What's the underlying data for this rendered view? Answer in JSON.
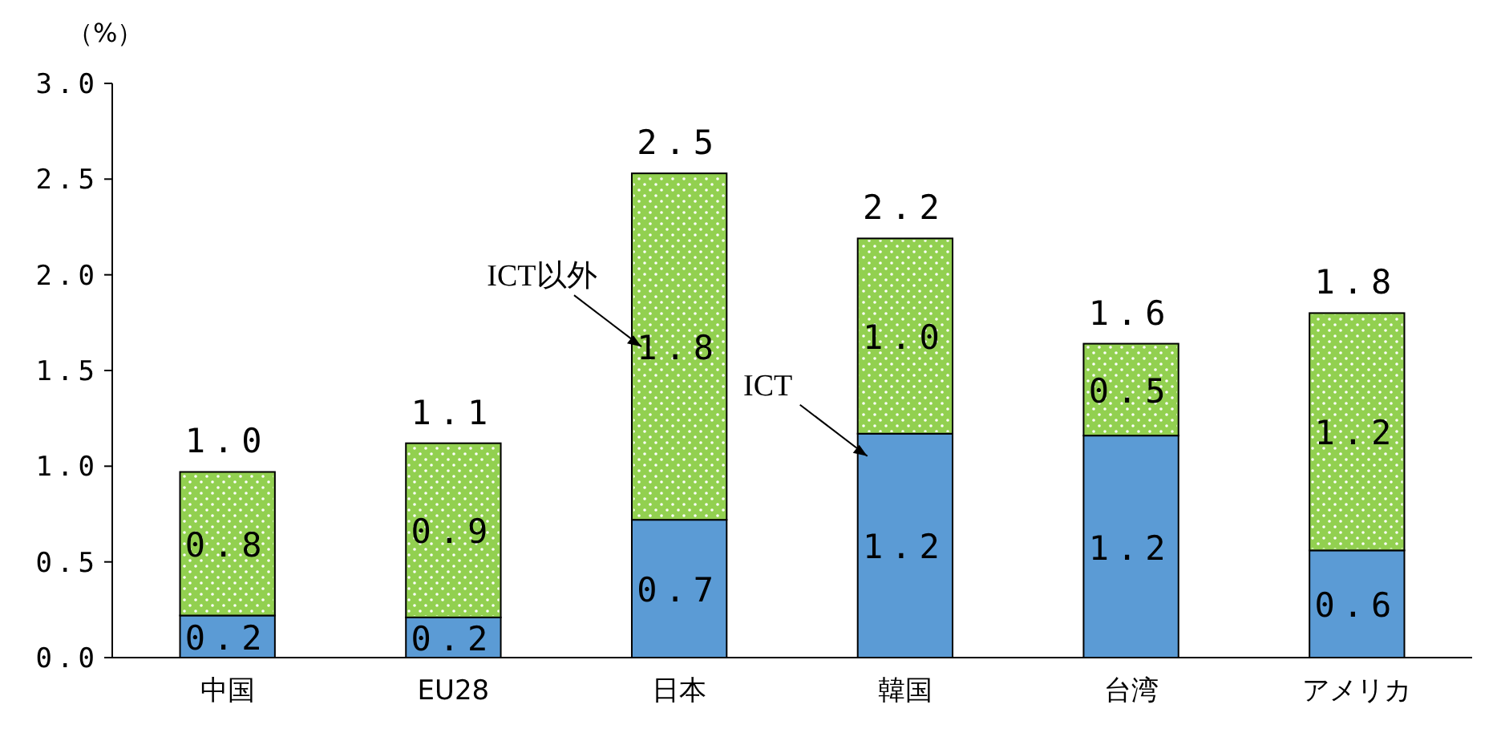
{
  "chart_data": {
    "type": "bar",
    "stacked": true,
    "ylabel": "（%）",
    "categories": [
      "中国",
      "EU28",
      "日本",
      "韓国",
      "台湾",
      "アメリカ"
    ],
    "series": [
      {
        "name": "ICT",
        "color": "#5b9bd5",
        "values": [
          0.22,
          0.21,
          0.72,
          1.17,
          1.16,
          0.56
        ],
        "value_labels": [
          "0.2",
          "0.2",
          "0.7",
          "1.2",
          "1.2",
          "0.6"
        ]
      },
      {
        "name": "ICT以外",
        "color": "#92d050",
        "values": [
          0.75,
          0.91,
          1.81,
          1.02,
          0.48,
          1.24
        ],
        "value_labels": [
          "0.8",
          "0.9",
          "1.8",
          "1.0",
          "0.5",
          "1.2"
        ]
      }
    ],
    "totals": [
      "1.0",
      "1.1",
      "2.5",
      "2.2",
      "1.6",
      "1.8"
    ],
    "ylim": [
      0,
      3
    ],
    "yticks": [
      {
        "value": 0,
        "label": "0.0"
      },
      {
        "value": 0.5,
        "label": "0.5"
      },
      {
        "value": 1,
        "label": "1.0"
      },
      {
        "value": 1.5,
        "label": "1.5"
      },
      {
        "value": 2,
        "label": "2.0"
      },
      {
        "value": 2.5,
        "label": "2.5"
      },
      {
        "value": 3,
        "label": "3.0"
      }
    ],
    "grid": false
  }
}
